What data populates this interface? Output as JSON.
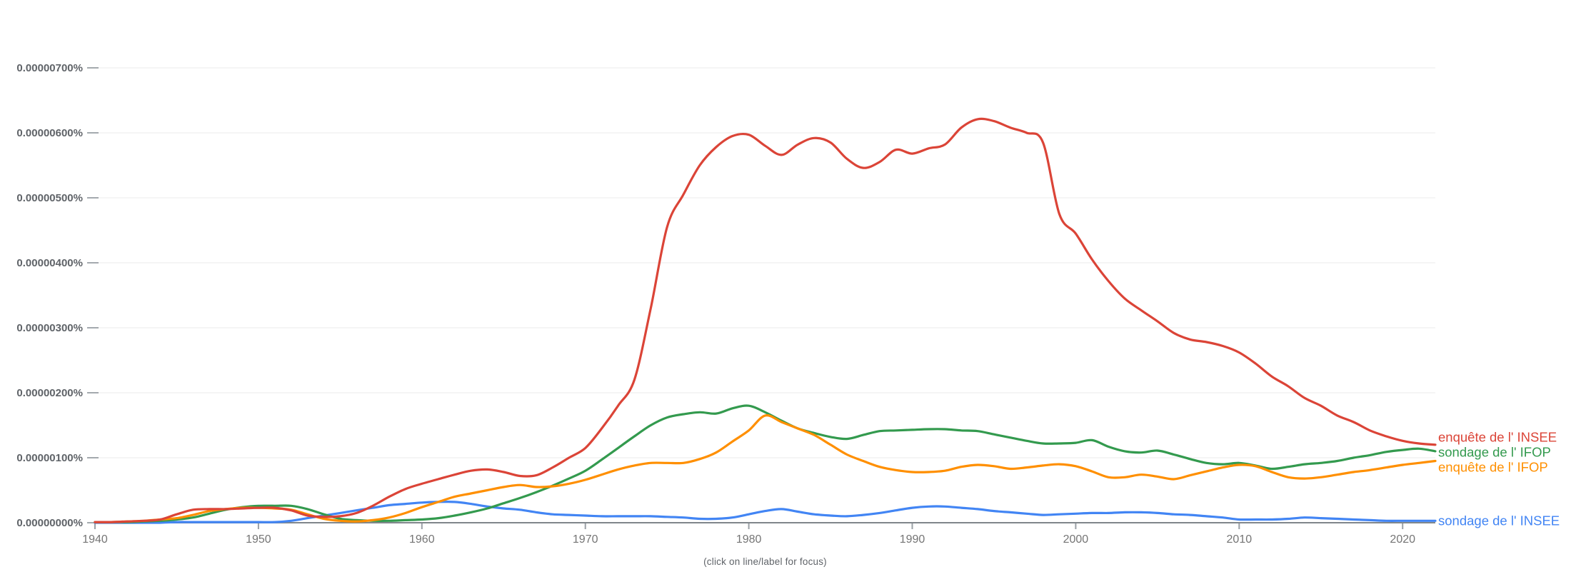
{
  "caption": "(click on line/label for focus)",
  "axis_colors": {
    "grid": "#efefef",
    "baseline": "#80868b",
    "tick": "#9aa0a6",
    "y_label": "#5f6368",
    "x_label": "#757575"
  },
  "chart_data": {
    "type": "line",
    "title": "",
    "unit": "percent x 1e-6 (ngram frequency)",
    "grid": true,
    "legend_position": "right-of-line-ends",
    "xlim": [
      1940,
      2022
    ],
    "ylim": [
      0,
      7.05
    ],
    "years": {
      "start": 1940,
      "end": 2022,
      "step": 1
    },
    "x_axis": {
      "ticks": [
        1940,
        1950,
        1960,
        1970,
        1980,
        1990,
        2000,
        2010,
        2020
      ]
    },
    "y_axis": {
      "tick_values": [
        0,
        1,
        2,
        3,
        4,
        5,
        6,
        7
      ],
      "tick_labels": [
        "0.00000000%",
        "0.00000100%",
        "0.00000200%",
        "0.00000300%",
        "0.00000400%",
        "0.00000500%",
        "0.00000600%",
        "0.00000700%"
      ]
    },
    "series": [
      {
        "name": "enquête de l' INSEE",
        "color": "#DB4437",
        "values": [
          0.01,
          0.01,
          0.02,
          0.03,
          0.05,
          0.13,
          0.2,
          0.21,
          0.21,
          0.22,
          0.23,
          0.23,
          0.19,
          0.11,
          0.09,
          0.1,
          0.15,
          0.26,
          0.4,
          0.52,
          0.6,
          0.67,
          0.74,
          0.8,
          0.82,
          0.78,
          0.72,
          0.73,
          0.85,
          1.0,
          1.15,
          1.45,
          1.8,
          2.2,
          3.3,
          4.55,
          5.05,
          5.5,
          5.78,
          5.95,
          5.97,
          5.8,
          5.66,
          5.82,
          5.92,
          5.85,
          5.6,
          5.46,
          5.55,
          5.74,
          5.68,
          5.76,
          5.82,
          6.08,
          6.21,
          6.18,
          6.08,
          6.0,
          5.85,
          4.75,
          4.45,
          4.05,
          3.72,
          3.45,
          3.27,
          3.1,
          2.92,
          2.82,
          2.78,
          2.72,
          2.62,
          2.45,
          2.25,
          2.1,
          1.92,
          1.8,
          1.65,
          1.55,
          1.42,
          1.33,
          1.26,
          1.22,
          1.2
        ]
      },
      {
        "name": "sondage de l' IFOP",
        "color": "#339A4E",
        "values": [
          0.01,
          0.01,
          0.01,
          0.02,
          0.03,
          0.05,
          0.08,
          0.14,
          0.2,
          0.24,
          0.26,
          0.26,
          0.26,
          0.21,
          0.13,
          0.06,
          0.04,
          0.03,
          0.03,
          0.04,
          0.05,
          0.07,
          0.11,
          0.16,
          0.22,
          0.3,
          0.38,
          0.47,
          0.57,
          0.68,
          0.8,
          0.97,
          1.15,
          1.33,
          1.5,
          1.62,
          1.67,
          1.7,
          1.68,
          1.76,
          1.8,
          1.7,
          1.57,
          1.45,
          1.38,
          1.32,
          1.29,
          1.35,
          1.41,
          1.42,
          1.43,
          1.44,
          1.44,
          1.42,
          1.41,
          1.36,
          1.31,
          1.26,
          1.22,
          1.22,
          1.23,
          1.27,
          1.17,
          1.1,
          1.08,
          1.11,
          1.05,
          0.98,
          0.92,
          0.9,
          0.92,
          0.88,
          0.83,
          0.86,
          0.9,
          0.92,
          0.95,
          1.0,
          1.04,
          1.09,
          1.12,
          1.14,
          1.1
        ]
      },
      {
        "name": "enquête de l' IFOP",
        "color": "#FF8F00",
        "values": [
          0.01,
          0.01,
          0.02,
          0.03,
          0.05,
          0.07,
          0.12,
          0.18,
          0.21,
          0.23,
          0.23,
          0.22,
          0.2,
          0.13,
          0.06,
          0.03,
          0.02,
          0.04,
          0.08,
          0.15,
          0.24,
          0.32,
          0.4,
          0.45,
          0.5,
          0.55,
          0.58,
          0.55,
          0.56,
          0.6,
          0.66,
          0.74,
          0.82,
          0.88,
          0.92,
          0.92,
          0.92,
          0.98,
          1.08,
          1.25,
          1.42,
          1.65,
          1.55,
          1.45,
          1.35,
          1.2,
          1.05,
          0.95,
          0.86,
          0.81,
          0.78,
          0.78,
          0.8,
          0.86,
          0.89,
          0.87,
          0.83,
          0.85,
          0.88,
          0.9,
          0.87,
          0.79,
          0.7,
          0.7,
          0.74,
          0.71,
          0.67,
          0.73,
          0.79,
          0.85,
          0.89,
          0.87,
          0.78,
          0.7,
          0.68,
          0.7,
          0.74,
          0.78,
          0.81,
          0.85,
          0.89,
          0.92,
          0.95
        ]
      },
      {
        "name": "sondage de l' INSEE",
        "color": "#4285F4",
        "values": [
          0.0,
          0.0,
          0.0,
          0.0,
          0.0,
          0.01,
          0.01,
          0.01,
          0.01,
          0.01,
          0.01,
          0.01,
          0.03,
          0.07,
          0.11,
          0.15,
          0.19,
          0.23,
          0.27,
          0.29,
          0.31,
          0.32,
          0.32,
          0.29,
          0.25,
          0.22,
          0.2,
          0.16,
          0.13,
          0.12,
          0.11,
          0.1,
          0.1,
          0.1,
          0.1,
          0.09,
          0.08,
          0.06,
          0.06,
          0.08,
          0.13,
          0.18,
          0.21,
          0.17,
          0.13,
          0.11,
          0.1,
          0.12,
          0.15,
          0.19,
          0.23,
          0.25,
          0.25,
          0.23,
          0.21,
          0.18,
          0.16,
          0.14,
          0.12,
          0.13,
          0.14,
          0.15,
          0.15,
          0.16,
          0.16,
          0.15,
          0.13,
          0.12,
          0.1,
          0.08,
          0.05,
          0.05,
          0.05,
          0.06,
          0.08,
          0.07,
          0.06,
          0.05,
          0.04,
          0.03,
          0.03,
          0.03,
          0.03
        ]
      }
    ]
  }
}
